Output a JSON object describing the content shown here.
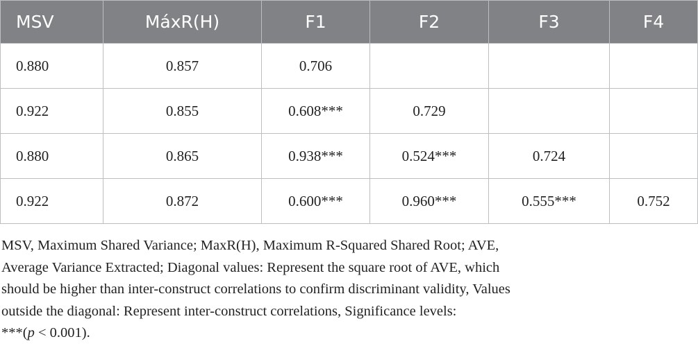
{
  "table": {
    "header": [
      "MSV",
      "MáxR(H)",
      "F1",
      "F2",
      "F3",
      "F4"
    ],
    "rows": [
      [
        "0.880",
        "0.857",
        "0.706",
        null,
        null,
        null
      ],
      [
        "0.922",
        "0.855",
        "0.608***",
        "0.729",
        null,
        null
      ],
      [
        "0.880",
        "0.865",
        "0.938***",
        "0.524***",
        "0.724",
        null
      ],
      [
        "0.922",
        "0.872",
        "0.600***",
        "0.960***",
        "0.555***",
        "0.752"
      ]
    ]
  },
  "note": {
    "lines": [
      "MSV, Maximum Shared Variance; MaxR(H), Maximum R-Squared Shared Root; AVE,",
      "Average Variance Extracted; Diagonal values: Represent the square root of AVE, which",
      "should be higher than inter-construct correlations to confirm discriminant validity, Values",
      "outside the diagonal: Represent inter-construct correlations, Significance levels:"
    ],
    "last_before": "***(",
    "last_italic": "p",
    "last_after": " < 0.001)."
  }
}
